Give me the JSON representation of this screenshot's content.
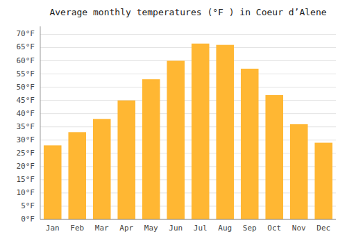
{
  "chart_data": {
    "type": "bar",
    "title": "Average monthly temperatures (°F ) in Coeur d’Alene",
    "categories": [
      "Jan",
      "Feb",
      "Mar",
      "Apr",
      "May",
      "Jun",
      "Jul",
      "Aug",
      "Sep",
      "Oct",
      "Nov",
      "Dec"
    ],
    "values": [
      28,
      33,
      38,
      45,
      53,
      60,
      66.5,
      66,
      57,
      47,
      36,
      29
    ],
    "color": "#FFB733",
    "ylim": [
      0,
      73
    ],
    "yticks": [
      {
        "value": 0,
        "label": "0°F"
      },
      {
        "value": 5,
        "label": "5°F"
      },
      {
        "value": 10,
        "label": "10°F"
      },
      {
        "value": 15,
        "label": "15°F"
      },
      {
        "value": 20,
        "label": "20°F"
      },
      {
        "value": 25,
        "label": "25°F"
      },
      {
        "value": 30,
        "label": "30°F"
      },
      {
        "value": 35,
        "label": "35°F"
      },
      {
        "value": 40,
        "label": "40°F"
      },
      {
        "value": 45,
        "label": "45°F"
      },
      {
        "value": 50,
        "label": "50°F"
      },
      {
        "value": 55,
        "label": "55°F"
      },
      {
        "value": 60,
        "label": "60°F"
      },
      {
        "value": 65,
        "label": "65°F"
      },
      {
        "value": 70,
        "label": "70°F"
      }
    ],
    "grid": true
  }
}
